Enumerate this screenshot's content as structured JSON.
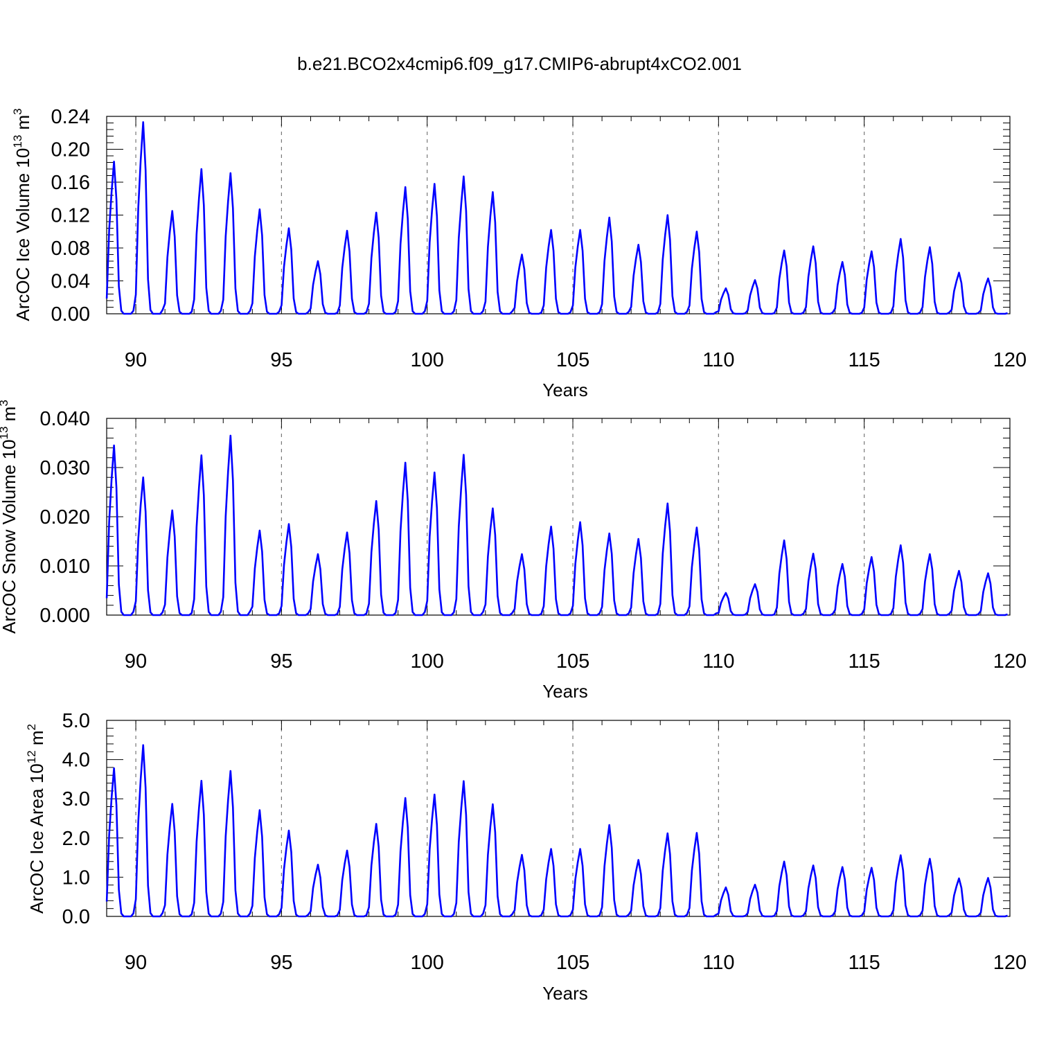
{
  "figure_title": "b.e21.BCO2x4cmip6.f09_g17.CMIP6-abrupt4xCO2.001",
  "colors": {
    "series": "#0000ff",
    "axis": "#000000",
    "grid": "#777777"
  },
  "chart_data": [
    {
      "type": "line",
      "title": "b.e21.BCO2x4cmip6.f09_g17.CMIP6-abrupt4xCO2.001",
      "xlabel": "Years",
      "ylabel_main": "ArcOC Ice Volume 10",
      "ylabel_exp": "13",
      "ylabel_unit": " m",
      "ylabel_unit_exp": "3",
      "xlim": [
        89,
        120
      ],
      "ylim": [
        0,
        0.24
      ],
      "xticks": [
        90,
        95,
        100,
        105,
        110,
        115,
        120
      ],
      "yticks": [
        "0.00",
        "0.04",
        "0.08",
        "0.12",
        "0.16",
        "0.20",
        "0.24"
      ],
      "grid": "dashed vertical lines at major x ticks",
      "series_name": "ArcOC Ice Volume",
      "peak_years": [
        89.25,
        90.25,
        91.25,
        92.25,
        93.25,
        94.25,
        95.25,
        96.25,
        97.25,
        98.25,
        99.25,
        100.25,
        101.25,
        102.25,
        103.25,
        104.25,
        105.25,
        106.25,
        107.25,
        108.25,
        109.25,
        110.25,
        111.25,
        112.25,
        113.25,
        114.25,
        115.25,
        116.25,
        117.25,
        118.25,
        119.25
      ],
      "peaks": [
        0.185,
        0.233,
        0.125,
        0.176,
        0.171,
        0.127,
        0.104,
        0.064,
        0.101,
        0.123,
        0.154,
        0.158,
        0.167,
        0.148,
        0.072,
        0.102,
        0.102,
        0.117,
        0.084,
        0.12,
        0.1,
        0.031,
        0.041,
        0.077,
        0.082,
        0.063,
        0.076,
        0.091,
        0.081,
        0.05,
        0.043
      ]
    },
    {
      "type": "line",
      "xlabel": "Years",
      "ylabel_main": "ArcOC Snow Volume 10",
      "ylabel_exp": "13",
      "ylabel_unit": " m",
      "ylabel_unit_exp": "3",
      "xlim": [
        89,
        120
      ],
      "ylim": [
        0,
        0.04
      ],
      "xticks": [
        90,
        95,
        100,
        105,
        110,
        115,
        120
      ],
      "yticks": [
        "0.000",
        "0.010",
        "0.020",
        "0.030",
        "0.040"
      ],
      "grid": "dashed vertical lines at major x ticks",
      "series_name": "ArcOC Snow Volume",
      "peak_years": [
        89.25,
        90.25,
        91.25,
        92.25,
        93.25,
        94.25,
        95.25,
        96.25,
        97.25,
        98.25,
        99.25,
        100.25,
        101.25,
        102.25,
        103.25,
        104.25,
        105.25,
        106.25,
        107.25,
        108.25,
        109.25,
        110.25,
        111.25,
        112.25,
        113.25,
        114.25,
        115.25,
        116.25,
        117.25,
        118.25,
        119.25
      ],
      "peaks": [
        0.0345,
        0.028,
        0.0213,
        0.0325,
        0.0365,
        0.0172,
        0.0185,
        0.0124,
        0.0168,
        0.0232,
        0.031,
        0.029,
        0.0326,
        0.0217,
        0.0124,
        0.018,
        0.0189,
        0.0166,
        0.0155,
        0.0227,
        0.0178,
        0.0045,
        0.0063,
        0.0152,
        0.0125,
        0.0104,
        0.0118,
        0.0142,
        0.0124,
        0.009,
        0.0085
      ]
    },
    {
      "type": "line",
      "xlabel": "Years",
      "ylabel_main": "ArcOC Ice Area 10",
      "ylabel_exp": "12",
      "ylabel_unit": " m",
      "ylabel_unit_exp": "2",
      "xlim": [
        89,
        120
      ],
      "ylim": [
        0,
        5
      ],
      "xticks": [
        90,
        95,
        100,
        105,
        110,
        115,
        120
      ],
      "yticks": [
        "0.0",
        "1.0",
        "2.0",
        "3.0",
        "4.0",
        "5.0"
      ],
      "grid": "dashed vertical lines at major x ticks",
      "series_name": "ArcOC Ice Area",
      "peak_years": [
        89.25,
        90.25,
        91.25,
        92.25,
        93.25,
        94.25,
        95.25,
        96.25,
        97.25,
        98.25,
        99.25,
        100.25,
        101.25,
        102.25,
        103.25,
        104.25,
        105.25,
        106.25,
        107.25,
        108.25,
        109.25,
        110.25,
        111.25,
        112.25,
        113.25,
        114.25,
        115.25,
        116.25,
        117.25,
        118.25,
        119.25
      ],
      "peaks": [
        3.78,
        4.37,
        2.87,
        3.46,
        3.71,
        2.71,
        2.19,
        1.32,
        1.68,
        2.36,
        3.02,
        3.11,
        3.45,
        2.86,
        1.57,
        1.72,
        1.72,
        2.33,
        1.44,
        2.12,
        2.13,
        0.74,
        0.81,
        1.4,
        1.3,
        1.26,
        1.24,
        1.56,
        1.47,
        0.97,
        0.98
      ]
    }
  ]
}
